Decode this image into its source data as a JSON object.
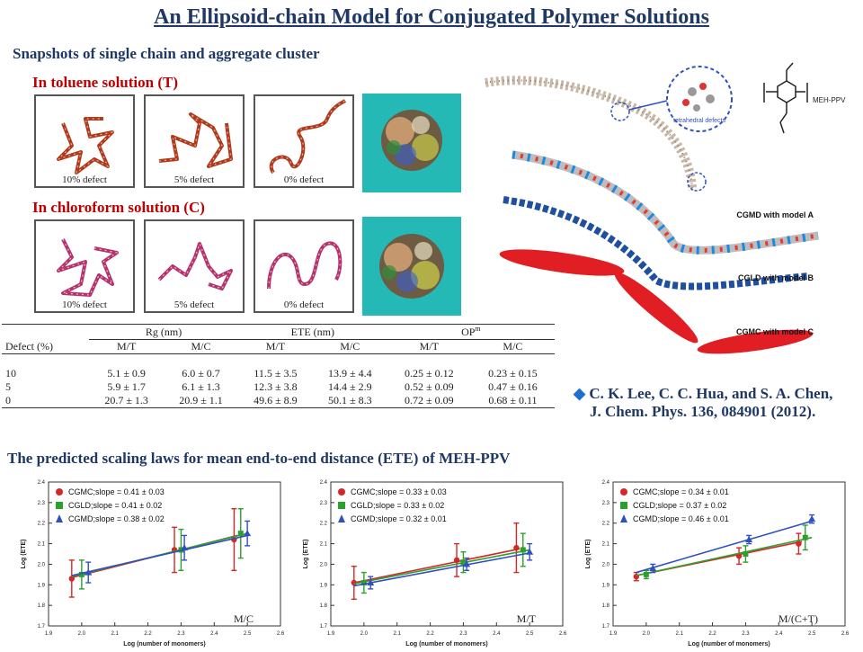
{
  "title": "An Ellipsoid-chain Model for Conjugated Polymer Solutions",
  "snapshots": {
    "heading": "Snapshots of single chain and aggregate cluster",
    "toluene_label": "In toluene solution (T)",
    "chloroform_label": "In chloroform solution (C)",
    "defect_labels": [
      "10% defect",
      "5% defect",
      "0% defect"
    ]
  },
  "model_figure": {
    "annotations": [
      "MEH-PPV",
      "tetrahedral defects",
      "CGMD with model A",
      "CGLD with model B",
      "CGMC with model C"
    ]
  },
  "table": {
    "header_groups": [
      "Rg (nm)",
      "ETE (nm)",
      "OP"
    ],
    "op_superscript": "m",
    "first_col": "Defect (%)",
    "subheaders": [
      "M/T",
      "M/C",
      "M/T",
      "M/C",
      "M/T",
      "M/C"
    ],
    "rows": [
      [
        "10",
        "5.1 ± 0.9",
        "6.0 ± 0.7",
        "11.5 ± 3.5",
        "13.9 ± 4.4",
        "0.25 ± 0.12",
        "0.23 ± 0.15"
      ],
      [
        "5",
        "5.9 ± 1.7",
        "6.1 ± 1.3",
        "12.3 ± 3.8",
        "14.4 ± 2.9",
        "0.52 ± 0.09",
        "0.47 ± 0.16"
      ],
      [
        "0",
        "20.7 ± 1.3",
        "20.9 ± 1.1",
        "49.6 ± 8.9",
        "50.1 ± 8.3",
        "0.72 ± 0.09",
        "0.68 ± 0.11"
      ]
    ]
  },
  "reference": {
    "line1": "C. K. Lee, C. C. Hua, and S. A. Chen,",
    "line2": "J. Chem. Phys. 136, 084901 (2012)."
  },
  "scaling_heading": "The predicted scaling laws for mean end-to-end distance (ETE) of MEH-PPV",
  "colors": {
    "CGMC": "#d62728",
    "CGLD": "#2ca02c",
    "CGMD": "#3050c0",
    "title": "#1f3864",
    "accent": "#c00000"
  },
  "chart_data": [
    {
      "type": "scatter",
      "panel_label": "M/C",
      "xlabel": "Log (number of monomers)",
      "ylabel": "Log (ETE)",
      "xlim": [
        1.9,
        2.6
      ],
      "ylim": [
        1.7,
        2.4
      ],
      "xticks": [
        "1.9",
        "2.0",
        "2.1",
        "2.2",
        "2.3",
        "2.4",
        "2.5",
        "2.6"
      ],
      "yticks": [
        "1.7",
        "1.8",
        "1.9",
        "2.0",
        "2.1",
        "2.2",
        "2.3",
        "2.4"
      ],
      "series": [
        {
          "name": "CGMC;slope = 0.41 ± 0.03",
          "marker": "circle",
          "x": [
            1.97,
            2.28,
            2.46
          ],
          "y": [
            1.93,
            2.07,
            2.12
          ],
          "err": [
            0.09,
            0.11,
            0.15
          ],
          "fit": [
            [
              1.97,
              1.935
            ],
            [
              2.47,
              2.14
            ]
          ]
        },
        {
          "name": "CGLD;slope = 0.41 ± 0.02",
          "marker": "square",
          "x": [
            2.0,
            2.3,
            2.48
          ],
          "y": [
            1.95,
            2.07,
            2.15
          ],
          "err": [
            0.07,
            0.1,
            0.12
          ],
          "fit": [
            [
              1.97,
              1.94
            ],
            [
              2.5,
              2.15
            ]
          ]
        },
        {
          "name": "CGMD;slope = 0.38 ± 0.02",
          "marker": "triangle",
          "x": [
            2.02,
            2.31,
            2.5
          ],
          "y": [
            1.96,
            2.08,
            2.15
          ],
          "err": [
            0.05,
            0.06,
            0.06
          ],
          "fit": [
            [
              1.97,
              1.945
            ],
            [
              2.5,
              2.14
            ]
          ]
        }
      ]
    },
    {
      "type": "scatter",
      "panel_label": "M/T",
      "xlabel": "Log (number of monomers)",
      "ylabel": "Log (ETE)",
      "xlim": [
        1.9,
        2.6
      ],
      "ylim": [
        1.7,
        2.4
      ],
      "xticks": [
        "1.9",
        "2.0",
        "2.1",
        "2.2",
        "2.3",
        "2.4",
        "2.5",
        "2.6"
      ],
      "yticks": [
        "1.7",
        "1.8",
        "1.9",
        "2.0",
        "2.1",
        "2.2",
        "2.3",
        "2.4"
      ],
      "series": [
        {
          "name": "CGMC;slope = 0.33 ± 0.03",
          "marker": "circle",
          "x": [
            1.97,
            2.28,
            2.46
          ],
          "y": [
            1.91,
            2.02,
            2.08
          ],
          "err": [
            0.08,
            0.08,
            0.12
          ],
          "fit": [
            [
              1.97,
              1.91
            ],
            [
              2.47,
              2.075
            ]
          ]
        },
        {
          "name": "CGLD;slope = 0.33 ± 0.02",
          "marker": "square",
          "x": [
            2.0,
            2.3,
            2.48
          ],
          "y": [
            1.91,
            2.01,
            2.07
          ],
          "err": [
            0.05,
            0.05,
            0.08
          ],
          "fit": [
            [
              1.97,
              1.905
            ],
            [
              2.5,
              2.07
            ]
          ]
        },
        {
          "name": "CGMD;slope = 0.32 ± 0.01",
          "marker": "triangle",
          "x": [
            2.02,
            2.31,
            2.5
          ],
          "y": [
            1.91,
            2.0,
            2.06
          ],
          "err": [
            0.03,
            0.03,
            0.04
          ],
          "fit": [
            [
              1.97,
              1.895
            ],
            [
              2.5,
              2.055
            ]
          ]
        }
      ]
    },
    {
      "type": "scatter",
      "panel_label": "M/(C+T)",
      "xlabel": "Log (number of monomers)",
      "ylabel": "Log (ETE)",
      "xlim": [
        1.9,
        2.6
      ],
      "ylim": [
        1.7,
        2.4
      ],
      "xticks": [
        "1.9",
        "2.0",
        "2.1",
        "2.2",
        "2.3",
        "2.4",
        "2.5",
        "2.6"
      ],
      "yticks": [
        "1.7",
        "1.8",
        "1.9",
        "2.0",
        "2.1",
        "2.2",
        "2.3",
        "2.4"
      ],
      "series": [
        {
          "name": "CGMC;slope = 0.34 ± 0.01",
          "marker": "circle",
          "x": [
            1.97,
            2.28,
            2.46
          ],
          "y": [
            1.94,
            2.04,
            2.1
          ],
          "err": [
            0.02,
            0.04,
            0.05
          ],
          "fit": [
            [
              1.97,
              1.945
            ],
            [
              2.47,
              2.11
            ]
          ]
        },
        {
          "name": "CGLD;slope = 0.37 ± 0.02",
          "marker": "square",
          "x": [
            2.0,
            2.3,
            2.48
          ],
          "y": [
            1.95,
            2.05,
            2.13
          ],
          "err": [
            0.02,
            0.04,
            0.06
          ],
          "fit": [
            [
              1.97,
              1.945
            ],
            [
              2.5,
              2.13
            ]
          ]
        },
        {
          "name": "CGMD;slope = 0.46 ± 0.01",
          "marker": "triangle",
          "x": [
            2.02,
            2.31,
            2.5
          ],
          "y": [
            1.98,
            2.12,
            2.22
          ],
          "err": [
            0.02,
            0.02,
            0.02
          ],
          "fit": [
            [
              1.97,
              1.96
            ],
            [
              2.5,
              2.21
            ]
          ]
        }
      ]
    }
  ]
}
